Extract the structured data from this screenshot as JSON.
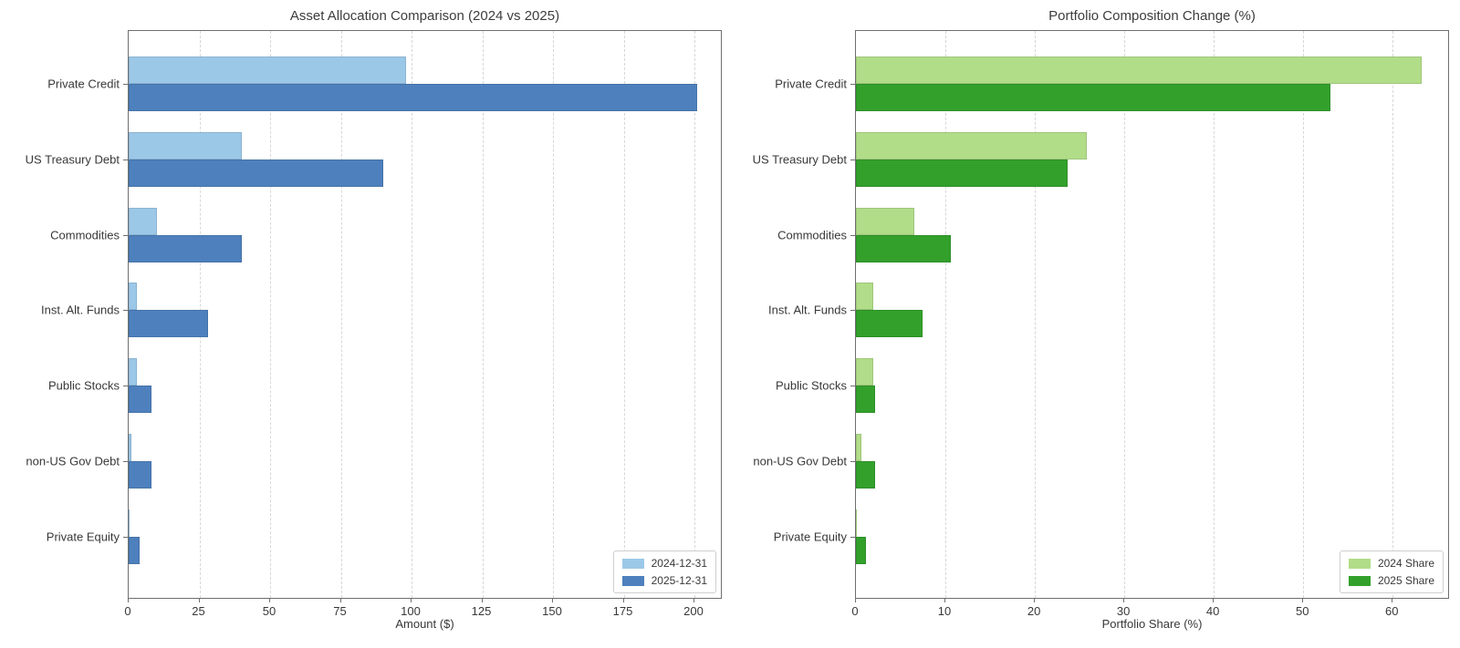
{
  "figure": {
    "background": "#ffffff",
    "grid_color": "#d7d7d7",
    "spine_color": "#6f6f6f",
    "text_color": "#383838"
  },
  "chart_data": [
    {
      "type": "bar",
      "orientation": "horizontal",
      "title": "Asset Allocation Comparison (2024 vs 2025)",
      "xlabel": "Amount ($)",
      "categories": [
        "Private Credit",
        "US Treasury Debt",
        "Commodities",
        "Inst. Alt. Funds",
        "Public Stocks",
        "non-US Gov Debt",
        "Private Equity"
      ],
      "series": [
        {
          "name": "2024-12-31",
          "color": "#9cc8e8",
          "values": [
            98,
            40,
            10,
            3,
            3,
            1,
            0.2
          ]
        },
        {
          "name": "2025-12-31",
          "color": "#4d80bd",
          "values": [
            201,
            90,
            40,
            28,
            8,
            8,
            4
          ]
        }
      ],
      "xticks": [
        0,
        25,
        50,
        75,
        100,
        125,
        150,
        175,
        200
      ],
      "xlim": [
        0,
        210
      ],
      "grid": "vertical-dashed",
      "legend_position": "lower-right"
    },
    {
      "type": "bar",
      "orientation": "horizontal",
      "title": "Portfolio Composition Change (%)",
      "xlabel": "Portfolio Share (%)",
      "categories": [
        "Private Credit",
        "US Treasury Debt",
        "Commodities",
        "Inst. Alt. Funds",
        "Public Stocks",
        "non-US Gov Debt",
        "Private Equity"
      ],
      "series": [
        {
          "name": "2024 Share",
          "color": "#b1dc88",
          "values": [
            63.2,
            25.8,
            6.5,
            1.9,
            1.9,
            0.65,
            0.13
          ]
        },
        {
          "name": "2025 Share",
          "color": "#33a02c",
          "values": [
            53.0,
            23.7,
            10.6,
            7.4,
            2.1,
            2.1,
            1.1
          ]
        }
      ],
      "xticks": [
        0,
        10,
        20,
        30,
        40,
        50,
        60
      ],
      "xlim": [
        0,
        66.4
      ],
      "grid": "vertical-dashed",
      "legend_position": "lower-right"
    }
  ]
}
